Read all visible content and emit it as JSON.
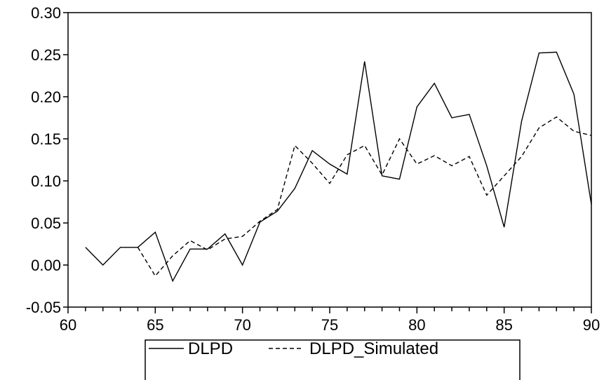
{
  "chart_data": {
    "type": "line",
    "xlim": [
      60,
      90
    ],
    "ylim": [
      -0.05,
      0.3
    ],
    "x_ticks": [
      60,
      65,
      70,
      75,
      80,
      85,
      90
    ],
    "y_ticks": [
      -0.05,
      0.0,
      0.05,
      0.1,
      0.15,
      0.2,
      0.25,
      0.3
    ],
    "x_tick_labels": [
      "60",
      "65",
      "70",
      "75",
      "80",
      "85",
      "90"
    ],
    "y_tick_labels": [
      "-0.05",
      "0.00",
      "0.05",
      "0.10",
      "0.15",
      "0.20",
      "0.25",
      "0.30"
    ],
    "grid": false,
    "legend_position": "bottom",
    "series": [
      {
        "name": "DLPD",
        "style": "solid",
        "color": "#000000",
        "x": [
          61,
          62,
          63,
          64,
          65,
          66,
          67,
          68,
          69,
          70,
          71,
          72,
          73,
          74,
          75,
          76,
          77,
          78,
          79,
          80,
          81,
          82,
          83,
          84,
          85,
          86,
          87,
          88,
          89,
          90
        ],
        "y": [
          0.021,
          0.0,
          0.021,
          0.021,
          0.039,
          -0.019,
          0.019,
          0.019,
          0.037,
          0.0,
          0.051,
          0.064,
          0.091,
          0.136,
          0.12,
          0.108,
          0.242,
          0.106,
          0.102,
          0.188,
          0.216,
          0.175,
          0.179,
          0.118,
          0.045,
          0.171,
          0.252,
          0.253,
          0.203,
          0.072
        ]
      },
      {
        "name": "DLPD_Simulated",
        "style": "dashed",
        "color": "#000000",
        "x": [
          64,
          65,
          66,
          67,
          68,
          69,
          70,
          71,
          72,
          73,
          74,
          75,
          76,
          77,
          78,
          79,
          80,
          81,
          82,
          83,
          84,
          85,
          86,
          87,
          88,
          89,
          90
        ],
        "y": [
          0.021,
          -0.013,
          0.011,
          0.029,
          0.018,
          0.031,
          0.034,
          0.052,
          0.066,
          0.142,
          0.121,
          0.097,
          0.131,
          0.142,
          0.107,
          0.15,
          0.12,
          0.13,
          0.118,
          0.129,
          0.083,
          0.106,
          0.129,
          0.163,
          0.176,
          0.159,
          0.154
        ]
      }
    ]
  }
}
